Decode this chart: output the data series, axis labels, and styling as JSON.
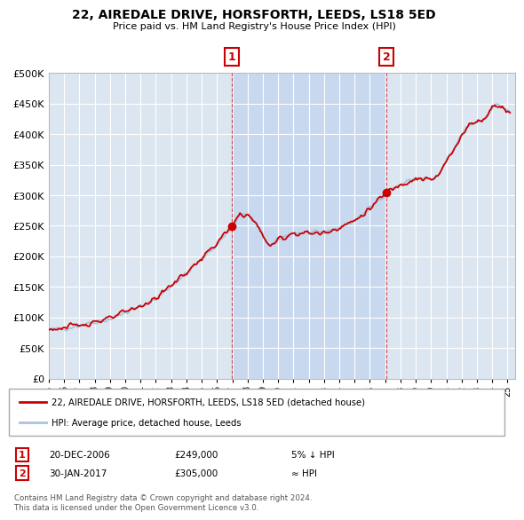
{
  "title": "22, AIREDALE DRIVE, HORSFORTH, LEEDS, LS18 5ED",
  "subtitle": "Price paid vs. HM Land Registry's House Price Index (HPI)",
  "legend_line1": "22, AIREDALE DRIVE, HORSFORTH, LEEDS, LS18 5ED (detached house)",
  "legend_line2": "HPI: Average price, detached house, Leeds",
  "annotation1_date": "20-DEC-2006",
  "annotation1_price": "£249,000",
  "annotation1_hpi": "5% ↓ HPI",
  "annotation2_date": "30-JAN-2017",
  "annotation2_price": "£305,000",
  "annotation2_hpi": "≈ HPI",
  "footer": "Contains HM Land Registry data © Crown copyright and database right 2024.\nThis data is licensed under the Open Government Licence v3.0.",
  "sale1_year": 2006.96,
  "sale1_price": 249000,
  "sale2_year": 2017.08,
  "sale2_price": 305000,
  "hpi_color": "#a8c4e0",
  "price_color": "#cc0000",
  "plot_bg_color": "#dce6f1",
  "highlight_bg_color": "#c8d8ee",
  "ylim_min": 0,
  "ylim_max": 500000,
  "xmin": 1995,
  "xmax": 2025.5
}
